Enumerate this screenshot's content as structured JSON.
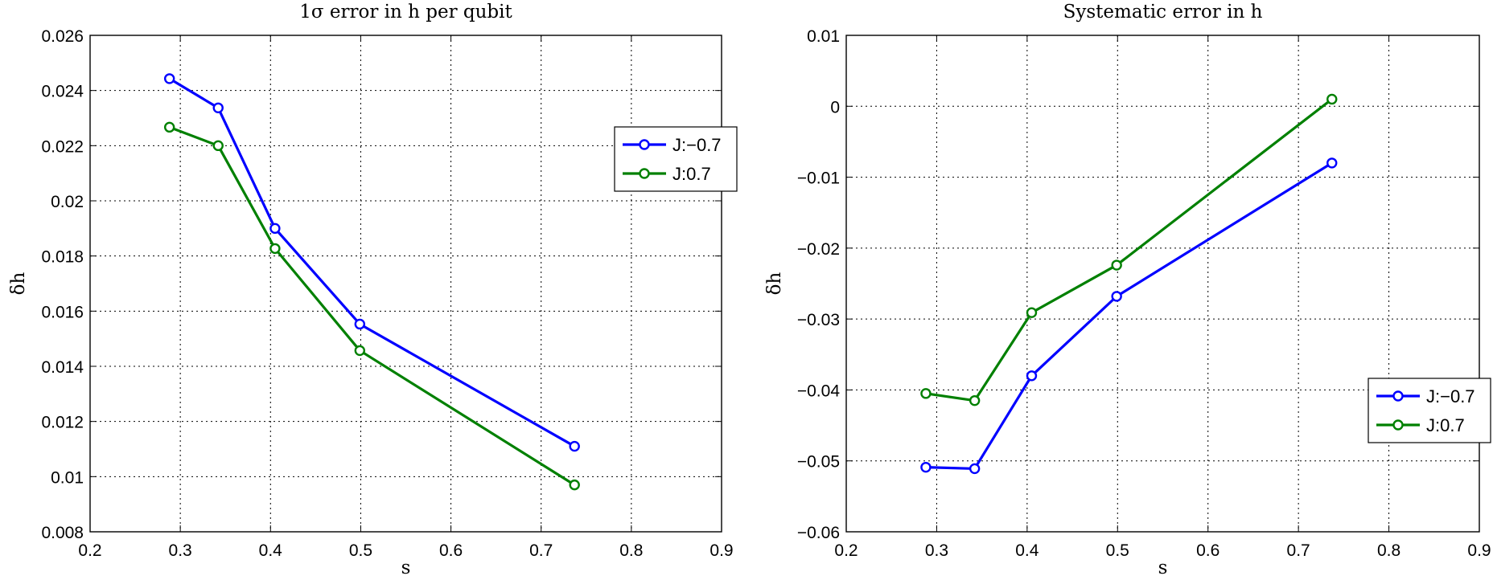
{
  "chart_data": [
    {
      "type": "line",
      "title": "1σ error in h per qubit",
      "xlabel": "s",
      "ylabel": "δh",
      "xlim": [
        0.2,
        0.9
      ],
      "ylim": [
        0.008,
        0.026
      ],
      "xticks": [
        "0.2",
        "0.3",
        "0.4",
        "0.5",
        "0.6",
        "0.7",
        "0.8",
        "0.9"
      ],
      "yticks": [
        "0.008",
        "0.01",
        "0.012",
        "0.014",
        "0.016",
        "0.018",
        "0.02",
        "0.022",
        "0.024",
        "0.026"
      ],
      "grid": true,
      "legend_position": "upper-right",
      "x": [
        0.288,
        0.342,
        0.405,
        0.499,
        0.737
      ],
      "series": [
        {
          "name": "J:−0.7",
          "color": "#0000ff",
          "values": [
            0.02443,
            0.02337,
            0.019,
            0.01553,
            0.0111
          ]
        },
        {
          "name": "J:0.7",
          "color": "#008000",
          "values": [
            0.02267,
            0.022,
            0.01827,
            0.01457,
            0.0097
          ]
        }
      ]
    },
    {
      "type": "line",
      "title": "Systematic error in h",
      "xlabel": "s",
      "ylabel": "δh",
      "xlim": [
        0.2,
        0.9
      ],
      "ylim": [
        -0.06,
        0.01
      ],
      "xticks": [
        "0.2",
        "0.3",
        "0.4",
        "0.5",
        "0.6",
        "0.7",
        "0.8",
        "0.9"
      ],
      "yticks": [
        "−0.06",
        "−0.05",
        "−0.04",
        "−0.03",
        "−0.02",
        "−0.01",
        "0",
        "0.01"
      ],
      "grid": true,
      "legend_position": "lower-right",
      "x": [
        0.288,
        0.342,
        0.405,
        0.499,
        0.737
      ],
      "series": [
        {
          "name": "J:−0.7",
          "color": "#0000ff",
          "values": [
            -0.0509,
            -0.0511,
            -0.038,
            -0.0268,
            -0.008
          ]
        },
        {
          "name": "J:0.7",
          "color": "#008000",
          "values": [
            -0.0405,
            -0.0415,
            -0.0291,
            -0.0224,
            0.001
          ]
        }
      ]
    }
  ]
}
